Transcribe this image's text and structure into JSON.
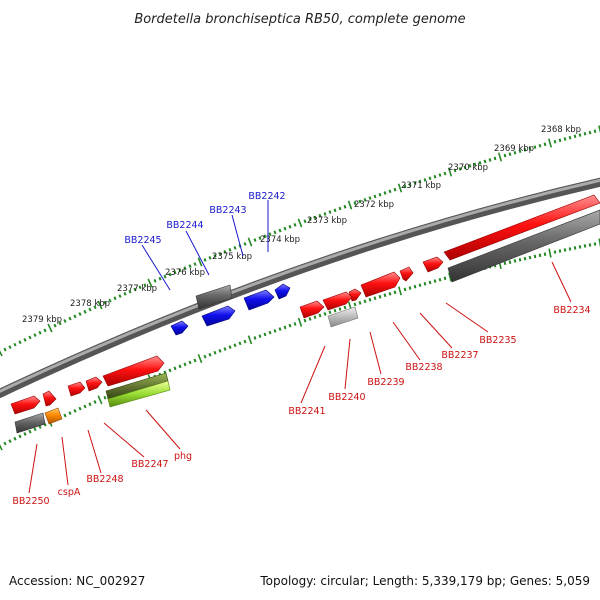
{
  "title": "Bordetella bronchiseptica RB50, complete genome",
  "footer": {
    "accession": "Accession: NC_002927",
    "summary": "Topology: circular; Length: 5,339,179 bp; Genes: 5,059"
  },
  "colors": {
    "backbone": "#777777",
    "forward_gene": "#ff1111",
    "reverse_gene": "#1111ee",
    "gray_gene": "#666666",
    "light_gray_gene": "#bbbbbb",
    "orange_gene": "#ff8800",
    "green_gene": "#99dd33",
    "tick_green": "#228822",
    "label_blue": "#1a1acc",
    "label_red": "#cc1111"
  },
  "scale_labels": [
    "2368 kbp",
    "2369 kbp",
    "2370 kbp",
    "2371 kbp",
    "2372 kbp",
    "2373 kbp",
    "2374 kbp",
    "2375 kbp",
    "2376 kbp",
    "2377 kbp",
    "2378 kbp",
    "2379 kbp"
  ],
  "upper_gene_labels": [
    "BB2242",
    "BB2243",
    "BB2244",
    "BB2245"
  ],
  "lower_gene_labels": [
    "BB2234",
    "BB2235",
    "BB2237",
    "BB2238",
    "BB2239",
    "BB2240",
    "BB2241",
    "phg",
    "BB2247",
    "BB2248",
    "cspA",
    "BB2250"
  ]
}
